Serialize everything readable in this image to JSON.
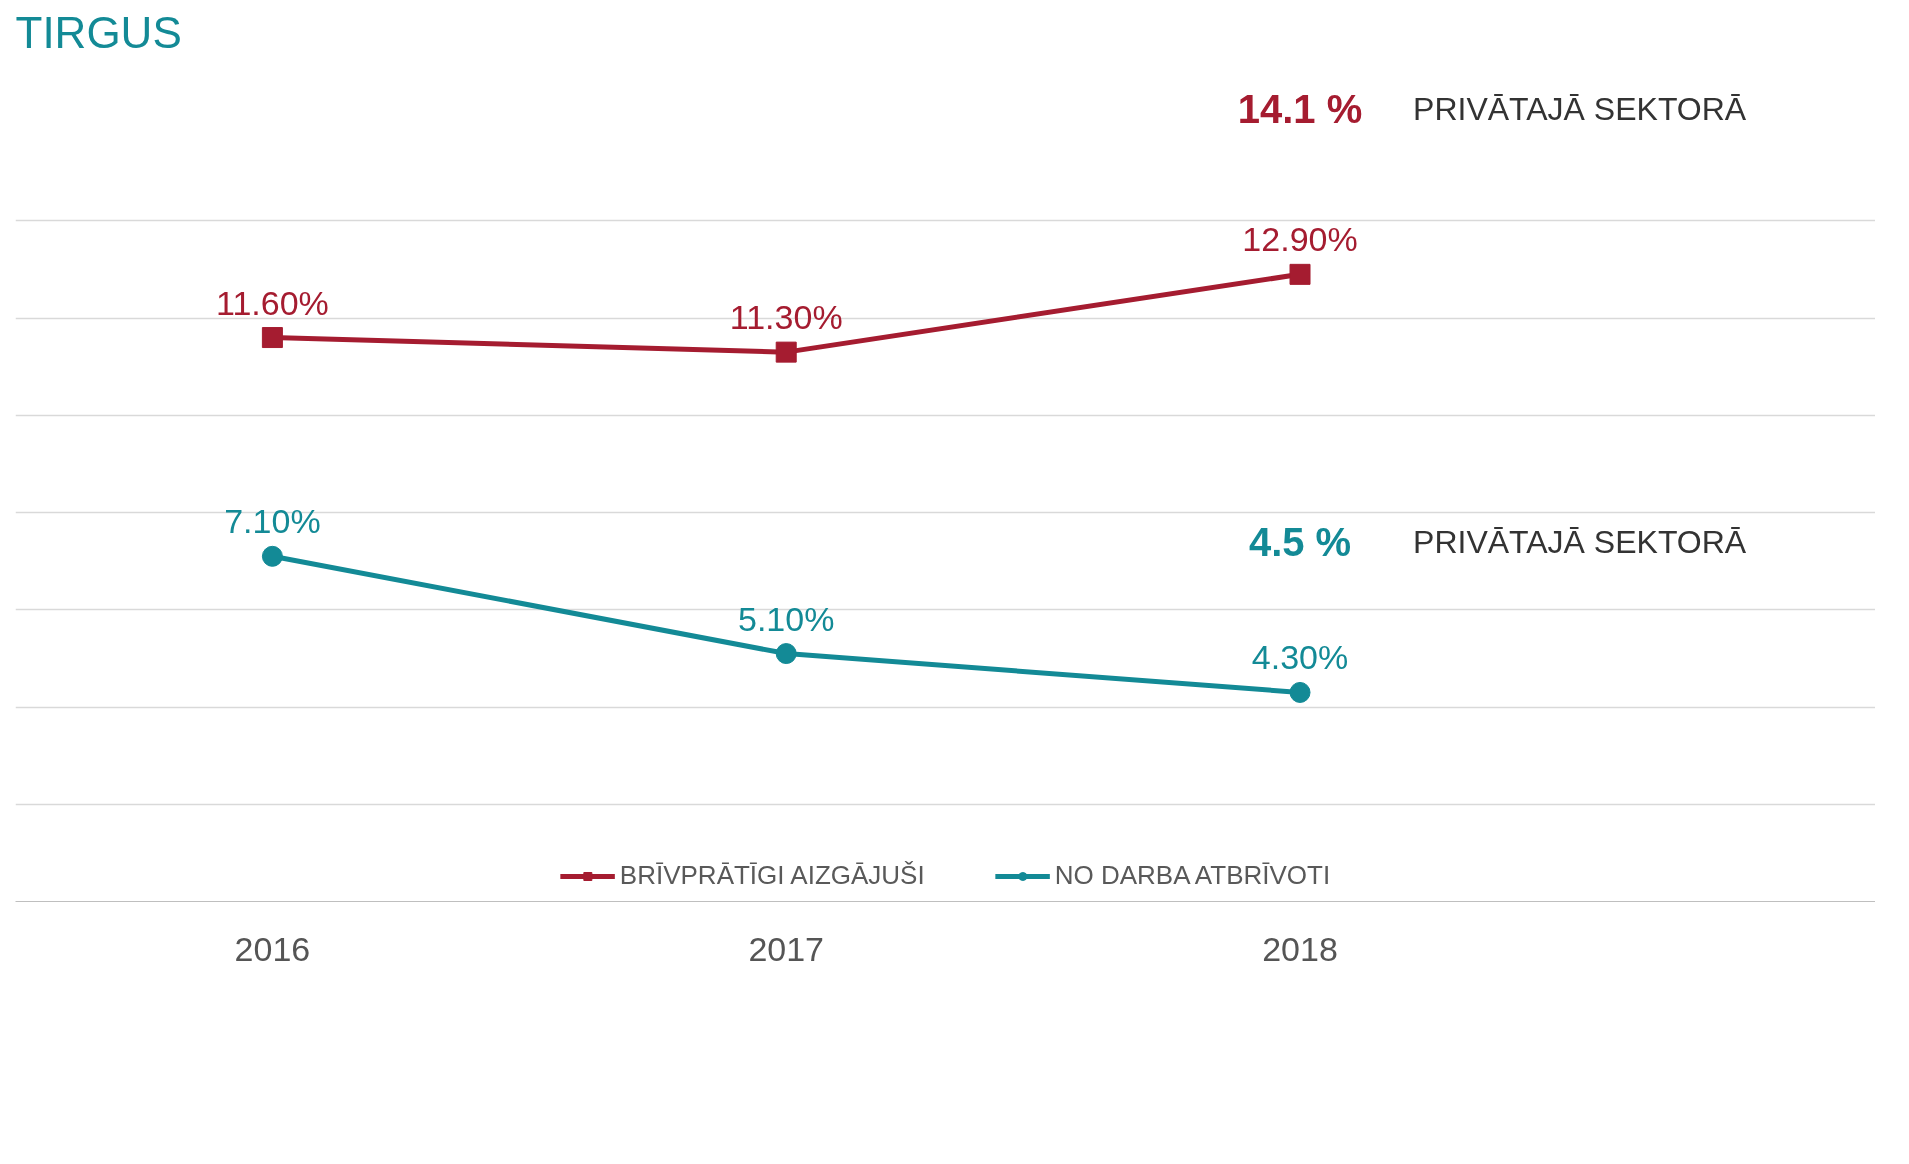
{
  "chart_data": {
    "type": "line",
    "title": "TIRGUS",
    "categories": [
      "2016",
      "2017",
      "2018"
    ],
    "series": [
      {
        "name": "BRĪVPRĀTĪGI AIZGĀJUŠI",
        "color": "#a51c30",
        "marker": "square",
        "values": [
          11.6,
          11.3,
          12.9
        ],
        "value_labels": [
          "11.60%",
          "11.30%",
          "12.90%"
        ]
      },
      {
        "name": "NO DARBA ATBRĪVOTI",
        "color": "#138a96",
        "marker": "circle",
        "values": [
          7.1,
          5.1,
          4.3
        ],
        "value_labels": [
          "7.10%",
          "5.10%",
          "4.30%"
        ]
      }
    ],
    "annotations": [
      "14.1 %",
      "PRIVĀTAJĀ SEKTORĀ",
      "4.5 %",
      "PRIVĀTAJĀ SEKTORĀ"
    ],
    "yticks": [
      {
        "value": 0,
        "label": null
      },
      {
        "value": 2,
        "label": null
      },
      {
        "value": 4,
        "label": null
      },
      {
        "value": 6,
        "label": null
      },
      {
        "value": 8,
        "label": null
      },
      {
        "value": 10,
        "label": null
      },
      {
        "value": 12,
        "label": null
      },
      {
        "value": 14,
        "label": null
      }
    ],
    "tick_labels": "x",
    "grid": "y",
    "legend": "bottom",
    "line_style": "solid"
  }
}
